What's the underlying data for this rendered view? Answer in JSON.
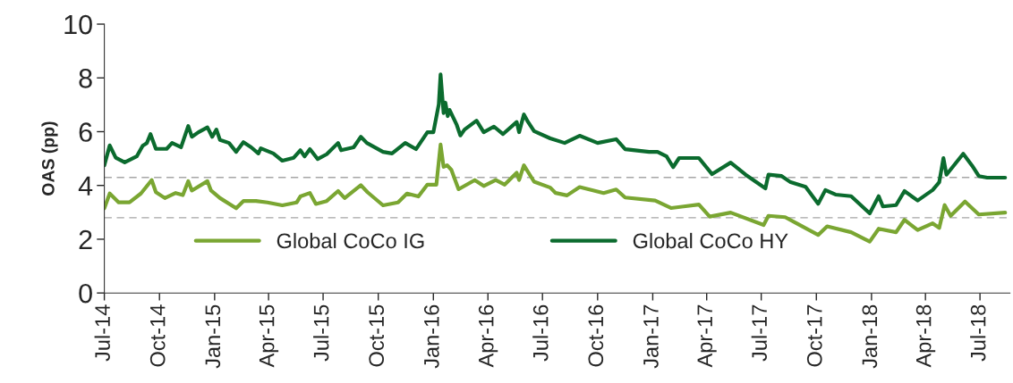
{
  "chart_data": {
    "type": "line",
    "ylabel": "OAS (pp)",
    "xlim": [
      "2014-07-01",
      "2018-08-20"
    ],
    "ylim": [
      0,
      10
    ],
    "yticks": [
      0,
      2,
      4,
      6,
      8,
      10
    ],
    "xticks": [
      {
        "value": "2014-07-01",
        "label": "Jul-14"
      },
      {
        "value": "2014-10-01",
        "label": "Oct-14"
      },
      {
        "value": "2015-01-01",
        "label": "Jan-15"
      },
      {
        "value": "2015-04-01",
        "label": "Apr-15"
      },
      {
        "value": "2015-07-01",
        "label": "Jul-15"
      },
      {
        "value": "2015-10-01",
        "label": "Oct-15"
      },
      {
        "value": "2016-01-01",
        "label": "Jan-16"
      },
      {
        "value": "2016-04-01",
        "label": "Apr-16"
      },
      {
        "value": "2016-07-01",
        "label": "Jul-16"
      },
      {
        "value": "2016-10-01",
        "label": "Oct-16"
      },
      {
        "value": "2017-01-01",
        "label": "Jan-17"
      },
      {
        "value": "2017-04-01",
        "label": "Apr-17"
      },
      {
        "value": "2017-07-01",
        "label": "Jul-17"
      },
      {
        "value": "2017-10-01",
        "label": "Oct-17"
      },
      {
        "value": "2018-01-01",
        "label": "Jan-18"
      },
      {
        "value": "2018-04-01",
        "label": "Apr-18"
      },
      {
        "value": "2018-07-01",
        "label": "Jul-18"
      }
    ],
    "grid": false,
    "legend": "bottom left",
    "marker": "none",
    "line_style": "solid",
    "ref_lines": [
      {
        "axis": "y",
        "value": 4.3,
        "color": "#a6a6a6",
        "line_style": "dashed"
      },
      {
        "axis": "y",
        "value": 2.8,
        "color": "#a6a6a6",
        "line_style": "dashed"
      }
    ],
    "series": [
      {
        "name": "Global CoCo IG",
        "color": "#7aa632",
        "x": [
          "2014-07-01",
          "2014-07-10",
          "2014-07-25",
          "2014-08-12",
          "2014-08-31",
          "2014-09-18",
          "2014-09-25",
          "2014-10-10",
          "2014-10-28",
          "2014-11-09",
          "2014-11-18",
          "2014-11-24",
          "2014-12-20",
          "2014-12-26",
          "2015-01-10",
          "2015-02-06",
          "2015-02-18",
          "2015-03-11",
          "2015-03-30",
          "2015-04-24",
          "2015-05-18",
          "2015-05-24",
          "2015-06-09",
          "2015-06-19",
          "2015-07-07",
          "2015-07-26",
          "2015-08-06",
          "2015-09-02",
          "2015-09-13",
          "2015-10-09",
          "2015-11-03",
          "2015-11-18",
          "2015-12-07",
          "2015-12-22",
          "2016-01-06",
          "2016-01-13",
          "2016-01-18",
          "2016-01-24",
          "2016-01-31",
          "2016-02-12",
          "2016-03-10",
          "2016-03-25",
          "2016-04-14",
          "2016-04-29",
          "2016-05-19",
          "2016-05-23",
          "2016-05-31",
          "2016-06-17",
          "2016-07-14",
          "2016-07-23",
          "2016-08-11",
          "2016-09-01",
          "2016-10-11",
          "2016-11-01",
          "2016-11-16",
          "2017-01-05",
          "2017-02-01",
          "2017-03-19",
          "2017-04-06",
          "2017-05-11",
          "2017-07-05",
          "2017-07-13",
          "2017-08-10",
          "2017-08-29",
          "2017-10-04",
          "2017-10-19",
          "2017-11-28",
          "2017-12-29",
          "2018-01-13",
          "2018-02-11",
          "2018-02-25",
          "2018-03-19",
          "2018-04-13",
          "2018-04-24",
          "2018-05-03",
          "2018-05-13",
          "2018-06-06",
          "2018-06-29",
          "2018-08-12"
        ],
        "values": [
          3.15,
          3.7,
          3.37,
          3.37,
          3.7,
          4.2,
          3.75,
          3.53,
          3.72,
          3.64,
          4.16,
          3.81,
          4.16,
          3.81,
          3.53,
          3.15,
          3.42,
          3.42,
          3.37,
          3.26,
          3.37,
          3.59,
          3.72,
          3.31,
          3.42,
          3.79,
          3.53,
          4.01,
          3.75,
          3.26,
          3.37,
          3.7,
          3.59,
          4.03,
          4.03,
          5.52,
          4.69,
          4.75,
          4.58,
          3.86,
          4.2,
          3.98,
          4.2,
          4.03,
          4.47,
          4.2,
          4.75,
          4.14,
          3.92,
          3.72,
          3.63,
          3.94,
          3.72,
          3.85,
          3.55,
          3.44,
          3.16,
          3.29,
          2.84,
          2.99,
          2.53,
          2.87,
          2.82,
          2.59,
          2.16,
          2.48,
          2.26,
          1.91,
          2.39,
          2.26,
          2.72,
          2.34,
          2.59,
          2.42,
          3.27,
          2.87,
          3.4,
          2.92,
          2.99
        ]
      },
      {
        "name": "Global CoCo HY",
        "color": "#0b6b2e",
        "x": [
          "2014-07-01",
          "2014-07-10",
          "2014-07-20",
          "2014-08-04",
          "2014-08-24",
          "2014-09-03",
          "2014-09-10",
          "2014-09-16",
          "2014-09-25",
          "2014-10-13",
          "2014-10-22",
          "2014-11-06",
          "2014-11-18",
          "2014-11-24",
          "2014-12-05",
          "2014-12-20",
          "2014-12-28",
          "2015-01-04",
          "2015-01-10",
          "2015-01-25",
          "2015-02-06",
          "2015-02-18",
          "2015-03-03",
          "2015-03-15",
          "2015-03-19",
          "2015-04-09",
          "2015-04-24",
          "2015-05-13",
          "2015-05-24",
          "2015-05-31",
          "2015-06-09",
          "2015-06-22",
          "2015-07-07",
          "2015-07-26",
          "2015-07-31",
          "2015-08-21",
          "2015-09-02",
          "2015-09-12",
          "2015-10-09",
          "2015-10-24",
          "2015-11-15",
          "2015-12-03",
          "2015-12-22",
          "2016-01-01",
          "2016-01-10",
          "2016-01-13",
          "2016-01-18",
          "2016-01-21",
          "2016-01-25",
          "2016-01-28",
          "2016-02-09",
          "2016-02-15",
          "2016-02-22",
          "2016-03-13",
          "2016-03-25",
          "2016-04-11",
          "2016-04-26",
          "2016-05-19",
          "2016-05-23",
          "2016-05-31",
          "2016-06-07",
          "2016-06-17",
          "2016-07-14",
          "2016-08-07",
          "2016-09-01",
          "2016-10-01",
          "2016-11-01",
          "2016-11-16",
          "2016-12-26",
          "2017-01-09",
          "2017-01-24",
          "2017-02-04",
          "2017-02-14",
          "2017-03-19",
          "2017-04-10",
          "2017-05-11",
          "2017-06-05",
          "2017-07-08",
          "2017-07-13",
          "2017-08-04",
          "2017-08-19",
          "2017-09-13",
          "2017-10-04",
          "2017-10-16",
          "2017-11-02",
          "2017-11-28",
          "2017-12-29",
          "2018-01-13",
          "2018-01-20",
          "2018-02-11",
          "2018-02-25",
          "2018-03-19",
          "2018-04-13",
          "2018-04-24",
          "2018-05-01",
          "2018-05-06",
          "2018-06-03",
          "2018-06-18",
          "2018-06-29",
          "2018-07-13",
          "2018-08-12"
        ],
        "values": [
          4.75,
          5.49,
          5.03,
          4.86,
          5.08,
          5.48,
          5.58,
          5.91,
          5.36,
          5.36,
          5.58,
          5.42,
          6.21,
          5.81,
          5.98,
          6.16,
          5.81,
          6.08,
          5.69,
          5.58,
          5.25,
          5.61,
          5.42,
          5.19,
          5.38,
          5.19,
          4.92,
          5.03,
          5.31,
          5.08,
          5.35,
          4.98,
          5.16,
          5.58,
          5.31,
          5.42,
          5.81,
          5.58,
          5.25,
          5.19,
          5.58,
          5.35,
          5.98,
          5.98,
          7.02,
          8.13,
          6.69,
          7.08,
          6.58,
          6.81,
          6.25,
          5.86,
          6.08,
          6.41,
          5.98,
          6.19,
          5.91,
          6.36,
          5.98,
          6.64,
          6.36,
          6.02,
          5.75,
          5.58,
          5.85,
          5.58,
          5.72,
          5.35,
          5.25,
          5.25,
          5.08,
          4.68,
          5.02,
          5.02,
          4.42,
          4.85,
          4.4,
          3.89,
          4.4,
          4.35,
          4.12,
          3.95,
          3.32,
          3.83,
          3.66,
          3.6,
          2.96,
          3.6,
          3.22,
          3.27,
          3.79,
          3.44,
          3.83,
          4.12,
          5.02,
          4.4,
          5.18,
          4.73,
          4.35,
          4.29,
          4.29
        ]
      }
    ]
  }
}
